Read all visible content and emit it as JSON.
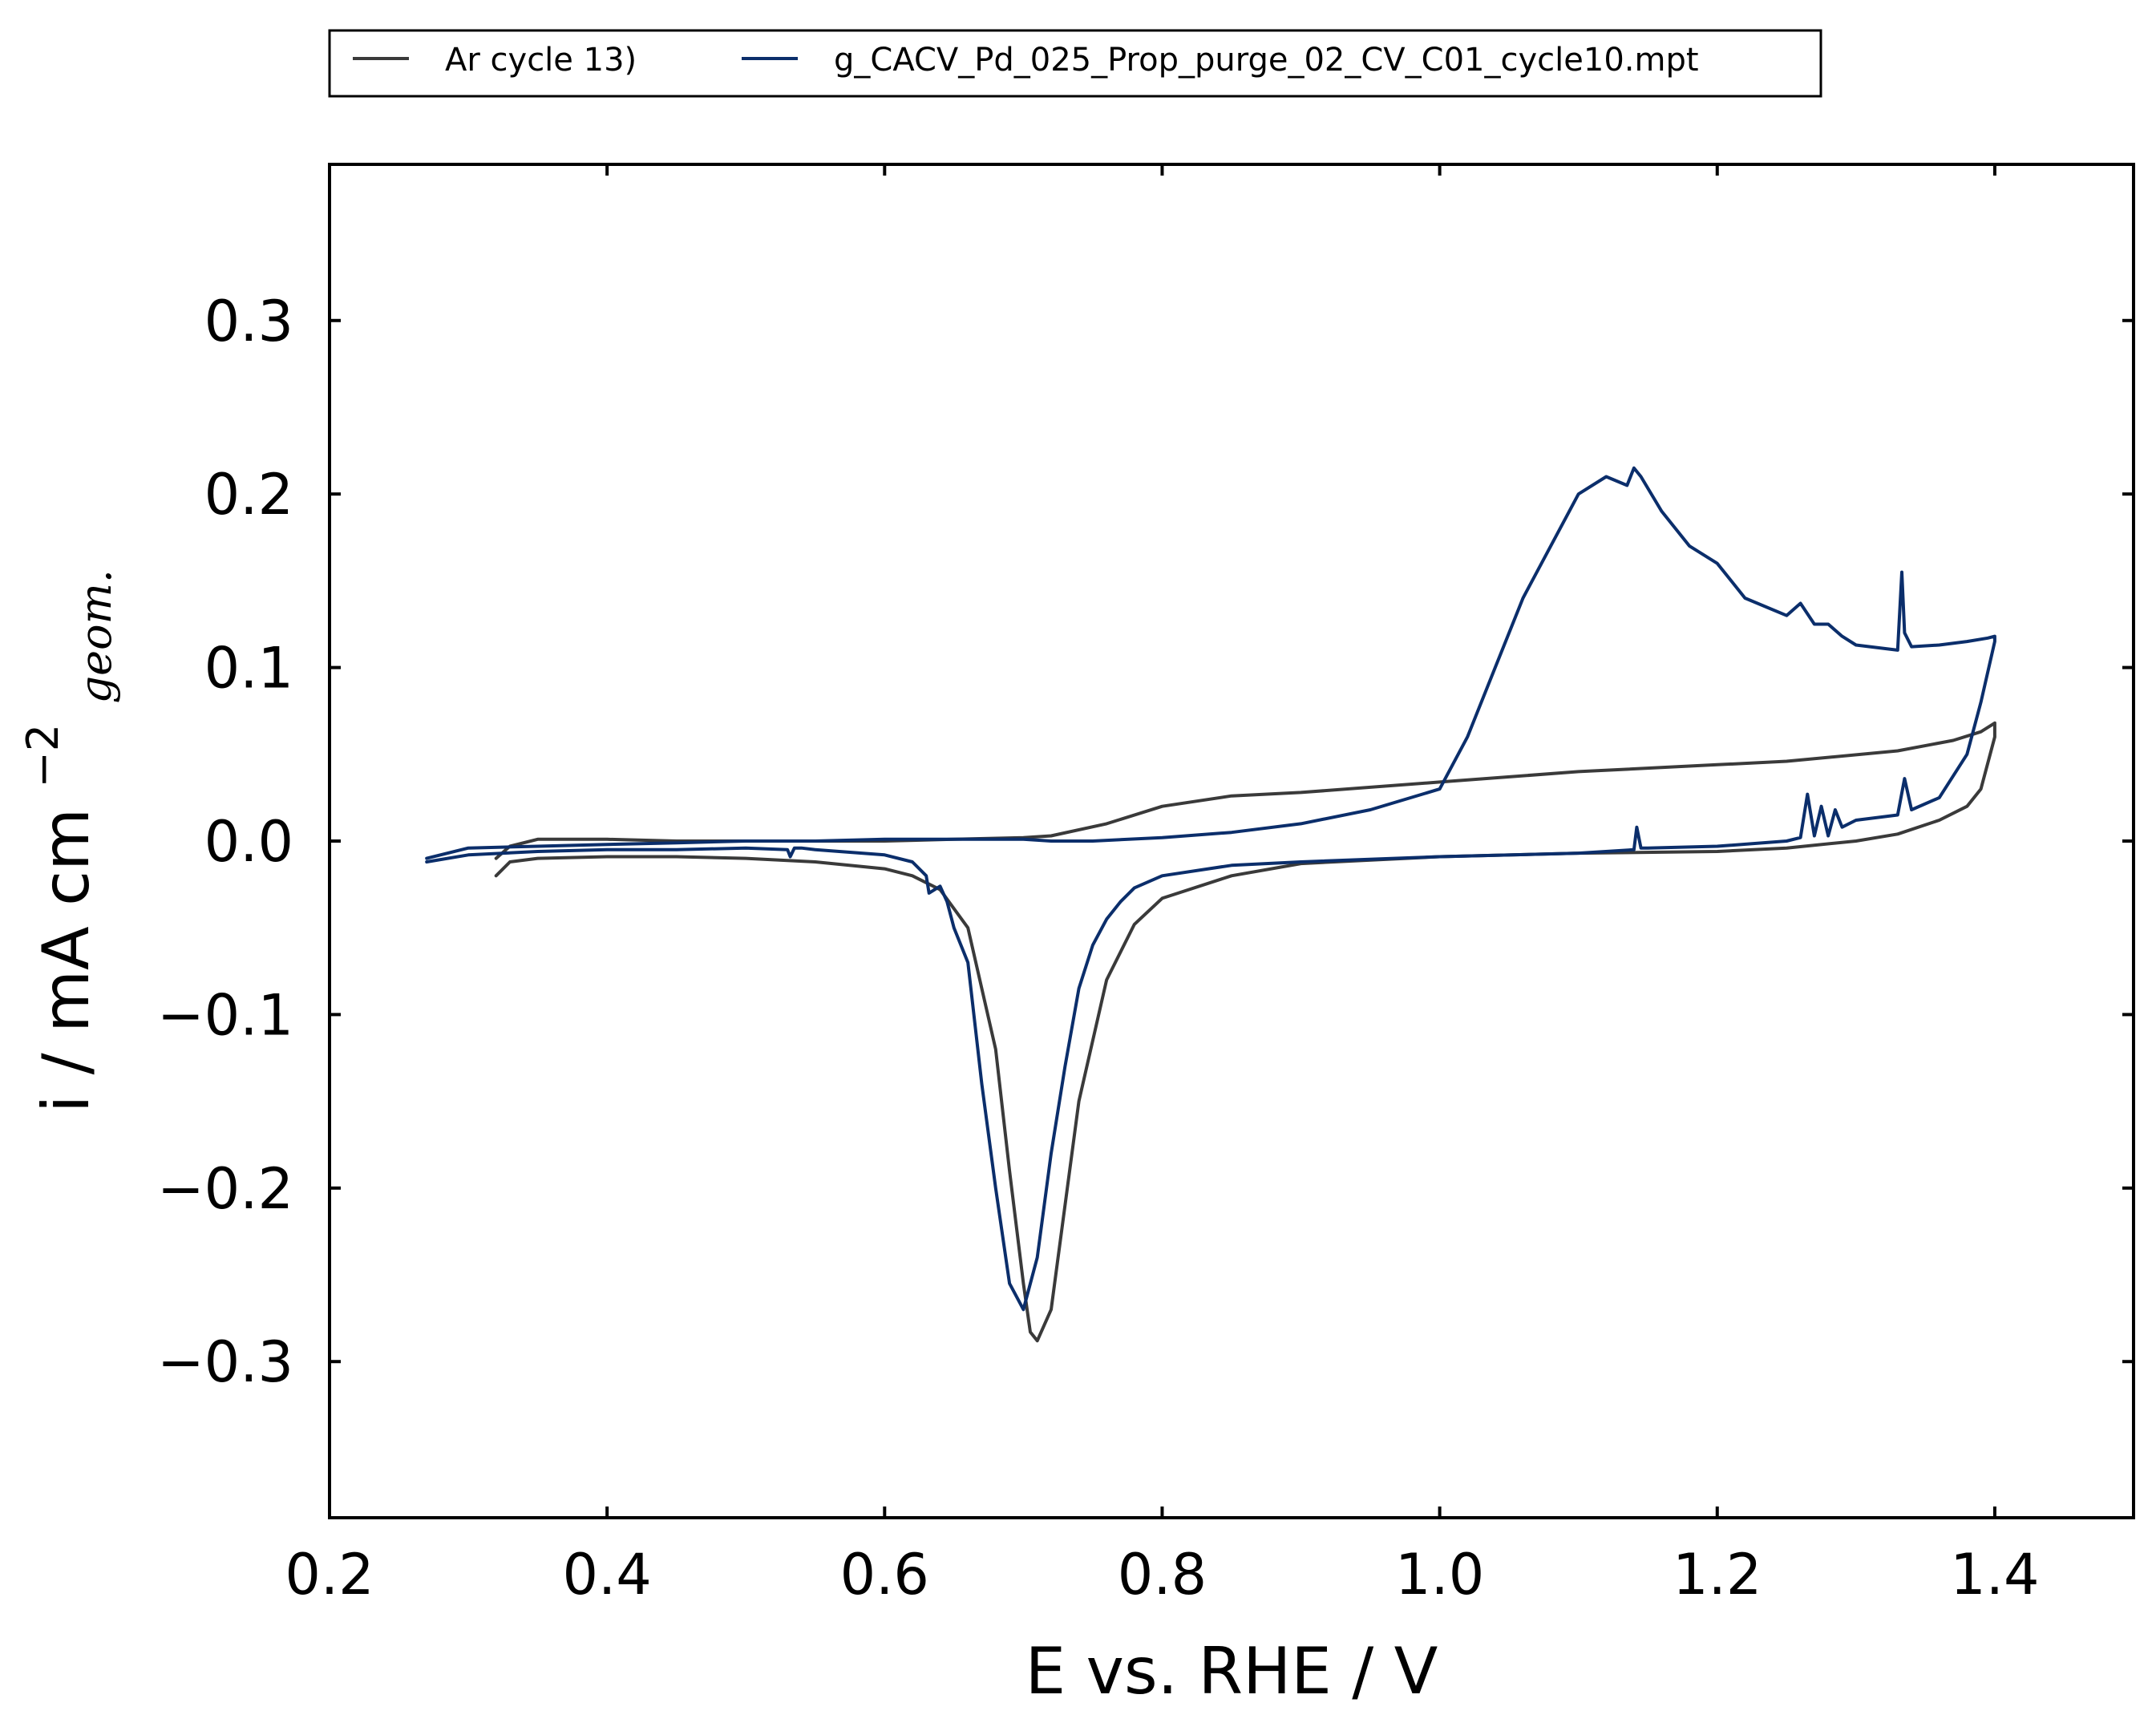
{
  "chart_data": {
    "type": "line",
    "xlabel": "E vs. RHE / V",
    "ylabel_main": "i / mA cm",
    "ylabel_sup": "−2",
    "ylabel_sub": "geom.",
    "xlim": [
      0.2,
      1.5
    ],
    "ylim": [
      -0.39,
      0.39
    ],
    "xticks": [
      0.2,
      0.4,
      0.6,
      0.8,
      1.0,
      1.2,
      1.4
    ],
    "xtick_labels": [
      "0.2",
      "0.4",
      "0.6",
      "0.8",
      "1.0",
      "1.2",
      "1.4"
    ],
    "yticks": [
      -0.3,
      -0.2,
      -0.1,
      0.0,
      0.1,
      0.2,
      0.3
    ],
    "ytick_labels": [
      "−0.3",
      "−0.2",
      "−0.1",
      "0.0",
      "0.1",
      "0.2",
      "0.3"
    ],
    "legend_position": "top, above plot",
    "series": [
      {
        "name": "Ar cycle 13)",
        "color": "#3a3a3a",
        "x": [
          0.32,
          0.33,
          0.35,
          0.4,
          0.45,
          0.5,
          0.55,
          0.6,
          0.62,
          0.64,
          0.66,
          0.68,
          0.69,
          0.7,
          0.705,
          0.71,
          0.72,
          0.73,
          0.74,
          0.76,
          0.78,
          0.8,
          0.85,
          0.9,
          1.0,
          1.1,
          1.2,
          1.25,
          1.3,
          1.33,
          1.36,
          1.38,
          1.39,
          1.4,
          1.4,
          1.39,
          1.37,
          1.33,
          1.25,
          1.2,
          1.1,
          1.0,
          0.9,
          0.85,
          0.8,
          0.76,
          0.72,
          0.7,
          0.65,
          0.6,
          0.55,
          0.5,
          0.45,
          0.4,
          0.35,
          0.33,
          0.32
        ],
        "y": [
          -0.02,
          -0.012,
          -0.01,
          -0.009,
          -0.009,
          -0.01,
          -0.012,
          -0.016,
          -0.02,
          -0.028,
          -0.05,
          -0.12,
          -0.19,
          -0.255,
          -0.283,
          -0.288,
          -0.27,
          -0.21,
          -0.15,
          -0.08,
          -0.048,
          -0.033,
          -0.02,
          -0.013,
          -0.009,
          -0.007,
          -0.006,
          -0.004,
          0.0,
          0.004,
          0.012,
          0.02,
          0.03,
          0.06,
          0.068,
          0.063,
          0.058,
          0.052,
          0.046,
          0.044,
          0.04,
          0.034,
          0.028,
          0.026,
          0.02,
          0.01,
          0.003,
          0.002,
          0.001,
          0.0,
          0.0,
          0.0,
          0.0,
          0.001,
          0.001,
          -0.003,
          -0.01
        ]
      },
      {
        "name": "g_CACV_Pd_025_Prop_purge_02_CV_C01_cycle10.mpt",
        "color": "#0b2e6b",
        "x": [
          0.27,
          0.3,
          0.35,
          0.4,
          0.45,
          0.5,
          0.53,
          0.532,
          0.535,
          0.54,
          0.55,
          0.6,
          0.62,
          0.63,
          0.632,
          0.64,
          0.645,
          0.65,
          0.66,
          0.67,
          0.68,
          0.69,
          0.7,
          0.71,
          0.72,
          0.73,
          0.74,
          0.75,
          0.76,
          0.77,
          0.78,
          0.8,
          0.85,
          0.9,
          1.0,
          1.1,
          1.14,
          1.142,
          1.145,
          1.15,
          1.2,
          1.25,
          1.26,
          1.265,
          1.27,
          1.275,
          1.28,
          1.285,
          1.29,
          1.3,
          1.33,
          1.335,
          1.34,
          1.36,
          1.38,
          1.39,
          1.4,
          1.4,
          1.395,
          1.38,
          1.36,
          1.34,
          1.335,
          1.333,
          1.33,
          1.3,
          1.29,
          1.28,
          1.27,
          1.26,
          1.25,
          1.22,
          1.2,
          1.18,
          1.16,
          1.145,
          1.14,
          1.135,
          1.12,
          1.1,
          1.08,
          1.06,
          1.04,
          1.02,
          1.0,
          0.95,
          0.9,
          0.85,
          0.8,
          0.75,
          0.72,
          0.7,
          0.65,
          0.6,
          0.55,
          0.5,
          0.45,
          0.4,
          0.35,
          0.3,
          0.27
        ],
        "y": [
          -0.012,
          -0.008,
          -0.006,
          -0.005,
          -0.005,
          -0.004,
          -0.005,
          -0.009,
          -0.004,
          -0.004,
          -0.005,
          -0.008,
          -0.012,
          -0.02,
          -0.03,
          -0.026,
          -0.035,
          -0.05,
          -0.07,
          -0.14,
          -0.2,
          -0.255,
          -0.27,
          -0.24,
          -0.18,
          -0.13,
          -0.085,
          -0.06,
          -0.045,
          -0.035,
          -0.027,
          -0.02,
          -0.014,
          -0.012,
          -0.009,
          -0.007,
          -0.005,
          0.008,
          -0.004,
          -0.004,
          -0.003,
          0.0,
          0.002,
          0.027,
          0.003,
          0.02,
          0.003,
          0.018,
          0.008,
          0.012,
          0.015,
          0.036,
          0.018,
          0.025,
          0.05,
          0.08,
          0.115,
          0.118,
          0.117,
          0.115,
          0.113,
          0.112,
          0.12,
          0.155,
          0.11,
          0.113,
          0.118,
          0.125,
          0.125,
          0.137,
          0.13,
          0.14,
          0.16,
          0.17,
          0.19,
          0.21,
          0.215,
          0.205,
          0.21,
          0.2,
          0.17,
          0.14,
          0.1,
          0.06,
          0.03,
          0.018,
          0.01,
          0.005,
          0.002,
          0.0,
          0.0,
          0.001,
          0.001,
          0.001,
          0.0,
          0.0,
          -0.001,
          -0.002,
          -0.003,
          -0.004,
          -0.01
        ]
      }
    ]
  }
}
